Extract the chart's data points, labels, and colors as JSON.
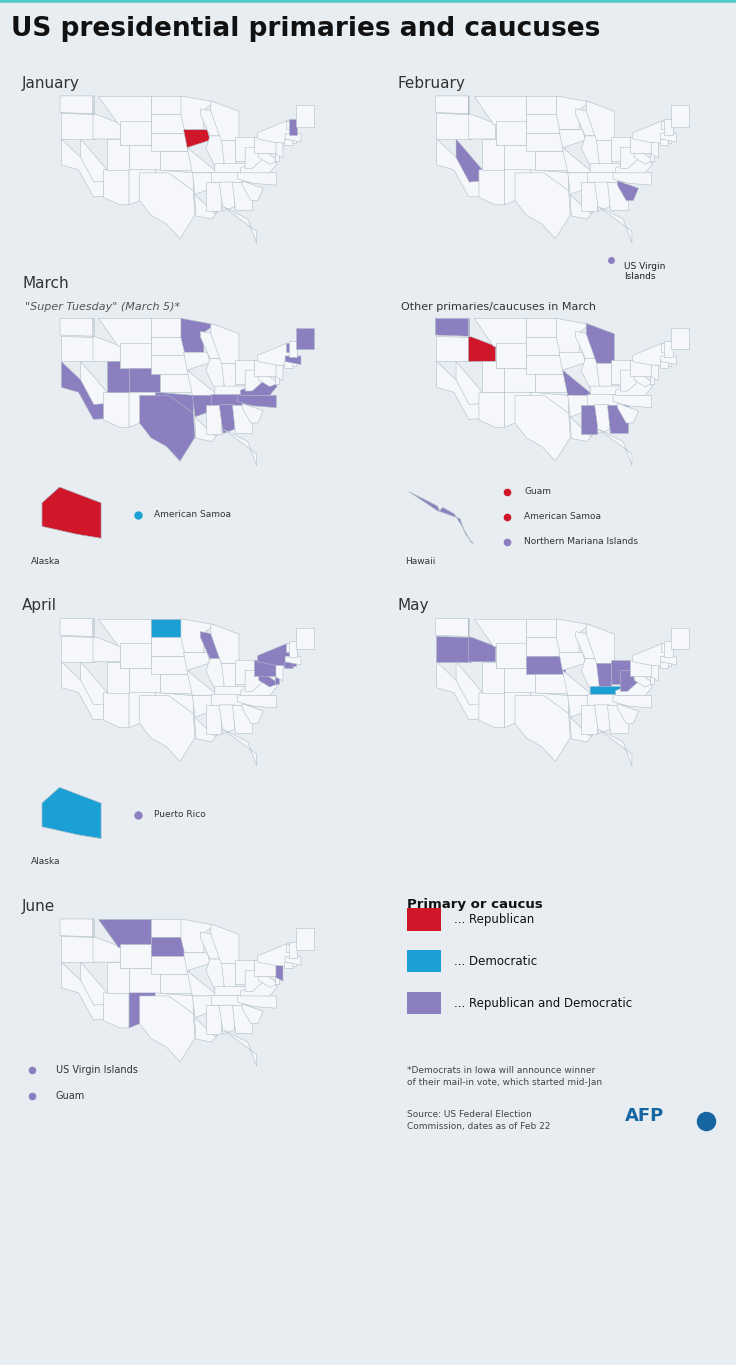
{
  "title": "US presidential primaries and caucuses",
  "background_color": "#e8edf2",
  "map_bg_color": "#dce4ec",
  "state_fill": "#f5f7fa",
  "state_edge": "#b0bec8",
  "title_color": "#111111",
  "accent_line_color": "#4ec9c9",
  "colors": {
    "republican": "#d0172a",
    "democratic": "#1aa0d4",
    "both": "#8b7fc0",
    "outline": "#9aabb8"
  },
  "january": {
    "iowa": "republican",
    "new_hampshire": "both"
  },
  "february": {
    "nevada": "both",
    "south_carolina": "both"
  },
  "march_st": {
    "california": "both",
    "texas": "both",
    "north_carolina": "both",
    "virginia": "both",
    "minnesota": "both",
    "colorado": "both",
    "massachusetts": "both",
    "tennessee": "both",
    "oklahoma": "both",
    "arkansas": "both",
    "alabama": "both",
    "maine": "both",
    "vermont": "both",
    "utah": "both"
  },
  "march_st_alaska": "republican",
  "march_st_american_samoa": "democratic",
  "march_other": {
    "idaho": "republican",
    "washington": "both",
    "michigan": "both",
    "missouri": "both",
    "mississippi": "both",
    "georgia": "both"
  },
  "march_other_hawaii": "both",
  "march_other_guam": "republican",
  "march_other_american_samoa": "republican",
  "march_other_northern_mariana": "both",
  "april": {
    "north_dakota": "democratic",
    "wisconsin": "both",
    "connecticut": "both",
    "new_york": "both",
    "pennsylvania": "both",
    "maryland": "both",
    "delaware": "both",
    "rhode_island": "both"
  },
  "april_alaska": "democratic",
  "april_puerto_rico": "both",
  "may": {
    "indiana": "both",
    "ohio": "both",
    "west_virginia": "both",
    "nebraska": "both",
    "oregon": "both",
    "kentucky": "democratic",
    "idaho": "both"
  },
  "june": {
    "new_mexico": "both",
    "montana": "both",
    "new_jersey": "both",
    "south_dakota": "both"
  },
  "june_usvi": "both",
  "june_guam": "both"
}
